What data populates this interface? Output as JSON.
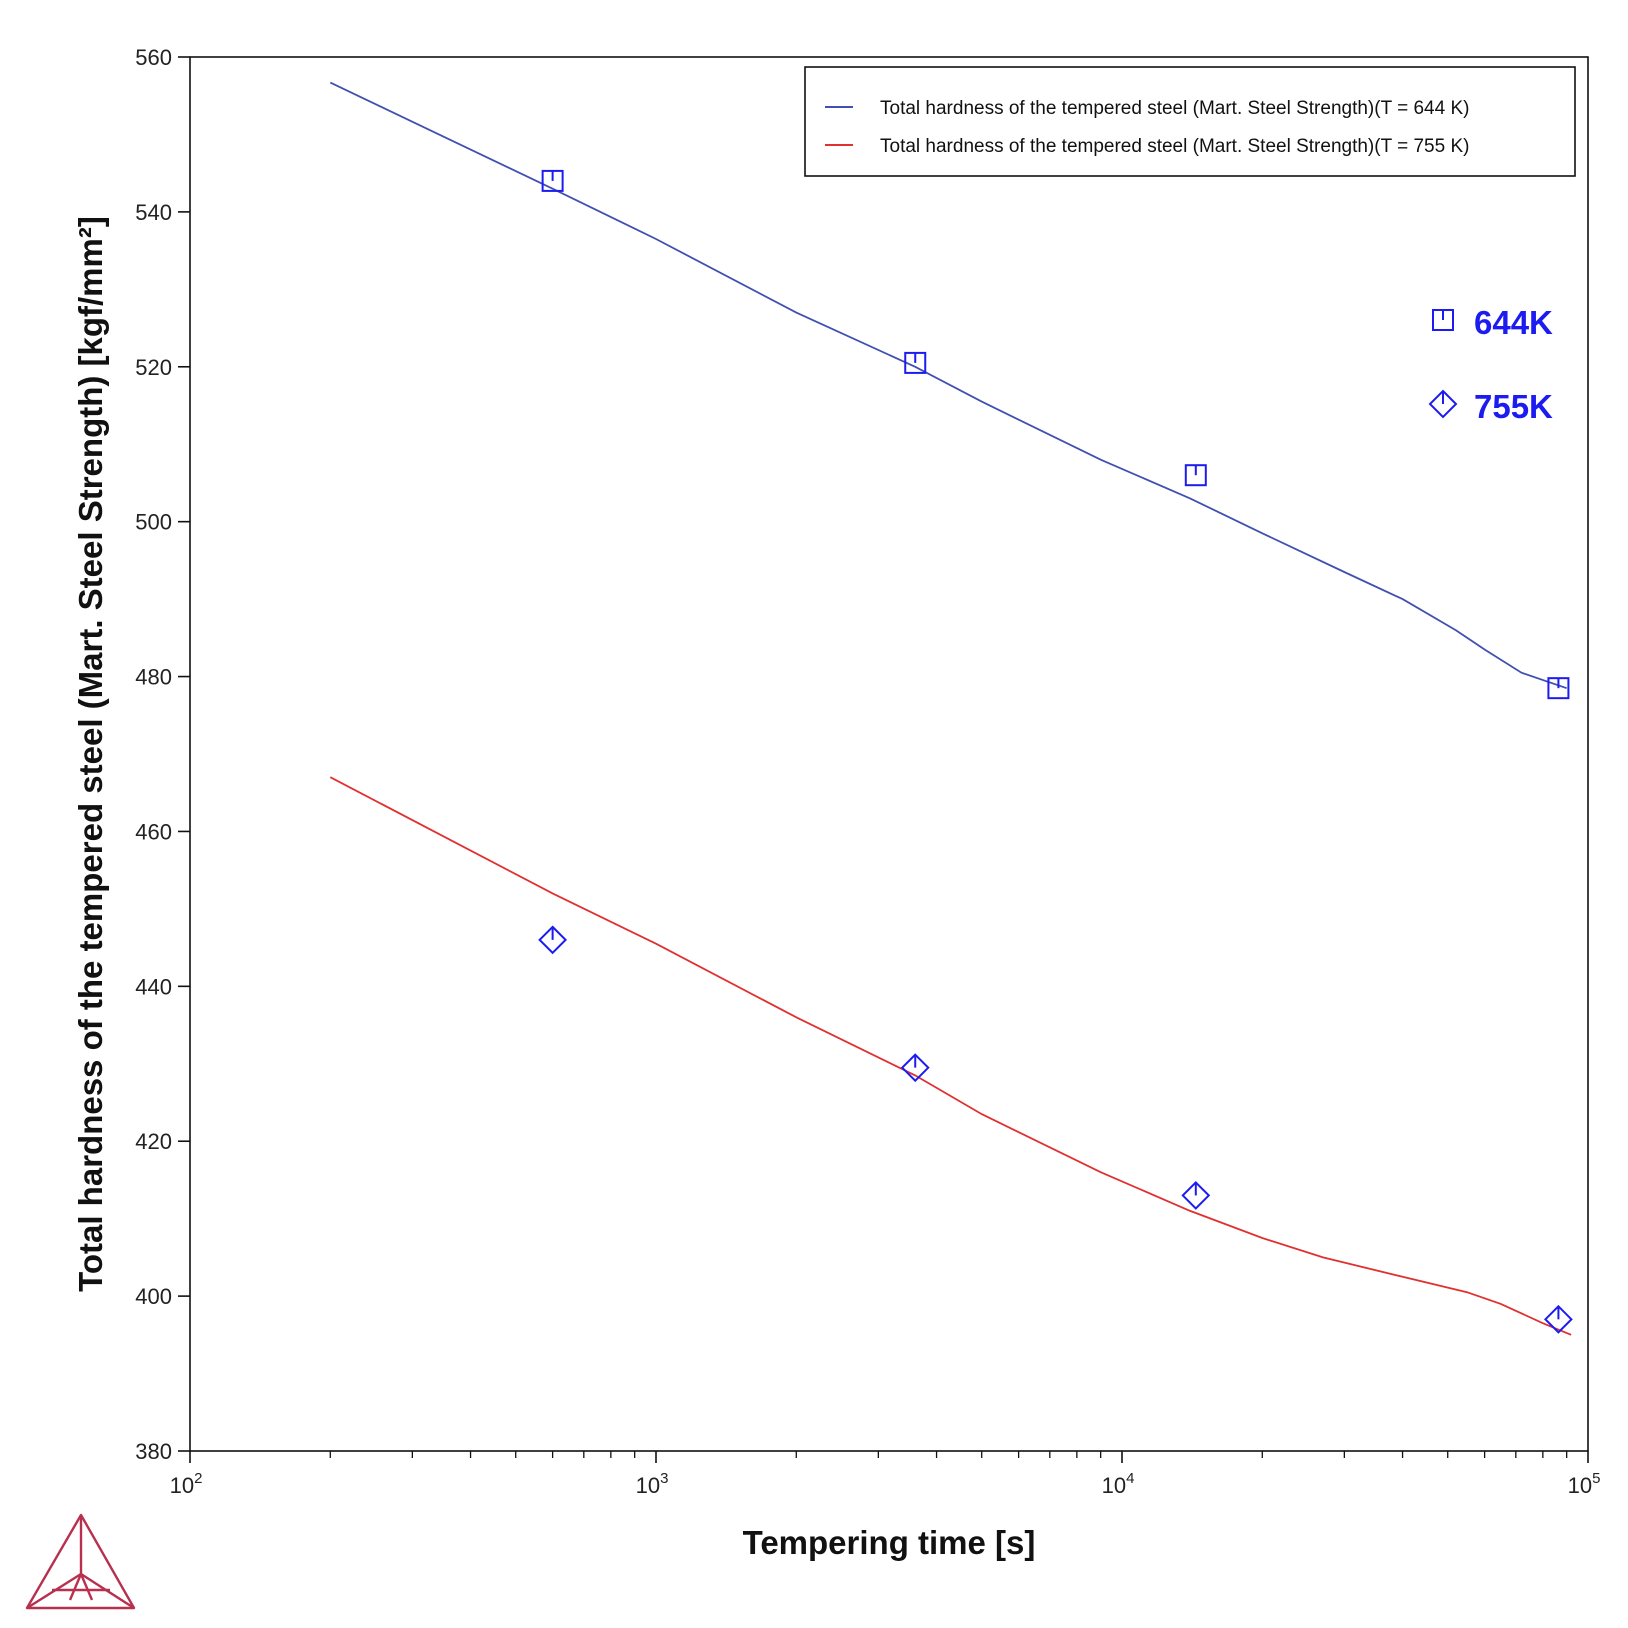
{
  "chart_data": {
    "type": "line",
    "xlabel": "Tempering time [s]",
    "ylabel": "Total hardness of the tempered steel (Mart. Steel Strength) [kgf/mm²]",
    "xscale": "log",
    "xlim": [
      100,
      100000
    ],
    "ylim": [
      380,
      560
    ],
    "x_tick_labels": [
      {
        "value": 100,
        "base": "10",
        "exp": "2"
      },
      {
        "value": 1000,
        "base": "10",
        "exp": "3"
      },
      {
        "value": 10000,
        "base": "10",
        "exp": "4"
      },
      {
        "value": 100000,
        "base": "10",
        "exp": "5"
      }
    ],
    "y_ticks": [
      380,
      400,
      420,
      440,
      460,
      480,
      500,
      520,
      540,
      560
    ],
    "legend_position": "top-right",
    "series": [
      {
        "name": "Total hardness of the tempered steel (Mart. Steel Strength)(T = 644 K)",
        "color": "#4050b0",
        "x": [
          200,
          600,
          1000,
          2000,
          3600,
          5000,
          9000,
          14000,
          20000,
          30000,
          40000,
          52000,
          60000,
          72000,
          90000
        ],
        "y": [
          556.7,
          543,
          536.5,
          527,
          520,
          515.5,
          508,
          503,
          498.5,
          493.5,
          490,
          486,
          483.5,
          480.5,
          478.5
        ]
      },
      {
        "name": "Total hardness of the tempered steel (Mart. Steel Strength)(T = 755 K)",
        "color": "#e03030",
        "x": [
          200,
          600,
          1000,
          2000,
          3600,
          5000,
          9000,
          14000,
          20000,
          27000,
          40000,
          55000,
          65000,
          80000,
          92000
        ],
        "y": [
          467,
          452,
          445.5,
          436,
          428.5,
          423.5,
          416,
          411,
          407.5,
          405,
          402.5,
          400.5,
          399,
          396.5,
          395
        ]
      }
    ],
    "markers": [
      {
        "name": "644K",
        "shape": "square",
        "color": "#1c1cf0",
        "x": [
          600,
          3600,
          14400,
          86400
        ],
        "y": [
          544,
          520.5,
          506,
          478.5
        ]
      },
      {
        "name": "755K",
        "shape": "diamond",
        "color": "#1c1cf0",
        "x": [
          600,
          3600,
          14400,
          86400
        ],
        "y": [
          446,
          429.5,
          413,
          397
        ]
      }
    ]
  }
}
